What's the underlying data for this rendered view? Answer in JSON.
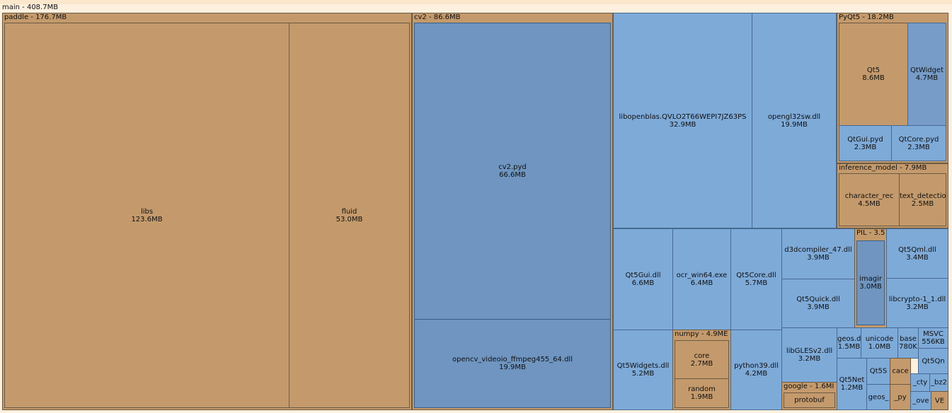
{
  "root": {
    "label": "main - 408.7MB"
  },
  "nodes": {
    "paddle": {
      "header": "paddle - 176.7MB"
    },
    "libs": {
      "name": "libs",
      "size": "123.6MB"
    },
    "fluid": {
      "name": "fluid",
      "size": "53.0MB"
    },
    "cv2": {
      "header": "cv2 - 86.6MB"
    },
    "cv2pyd": {
      "name": "cv2.pyd",
      "size": "66.6MB"
    },
    "opencv": {
      "name": "opencv_videoio_ffmpeg455_64.dll",
      "size": "19.9MB"
    },
    "libopenblas": {
      "name": "libopenblas.QVLO2T66WEPI7JZ63PS",
      "size": "32.9MB"
    },
    "opengl": {
      "name": "opengl32sw.dll",
      "size": "19.9MB"
    },
    "pyqt5": {
      "header": "PyQt5 - 18.2MB"
    },
    "qt5": {
      "name": "Qt5",
      "size": "8.6MB"
    },
    "qtwidgets": {
      "name": "QtWidget",
      "size": "4.7MB"
    },
    "qtgui": {
      "name": "QtGui.pyd",
      "size": "2.3MB"
    },
    "qtcore": {
      "name": "QtCore.pyd",
      "size": "2.3MB"
    },
    "inference": {
      "header": "inference_model - 7.9MB"
    },
    "charrec": {
      "name": "character_rec",
      "size": "4.5MB"
    },
    "textdet": {
      "name": "text_detectio",
      "size": "2.5MB"
    },
    "qt5gui": {
      "name": "Qt5Gui.dll",
      "size": "6.6MB"
    },
    "ocr": {
      "name": "ocr_win64.exe",
      "size": "6.4MB"
    },
    "qt5core": {
      "name": "Qt5Core.dll",
      "size": "5.7MB"
    },
    "d3d": {
      "name": "d3dcompiler_47.dll",
      "size": "3.9MB"
    },
    "qt5quick": {
      "name": "Qt5Quick.dll",
      "size": "3.9MB"
    },
    "pil": {
      "header": "PIL - 3.5"
    },
    "imaging": {
      "name": "imagir",
      "size": "3.0MB"
    },
    "qt5qml": {
      "name": "Qt5Qml.dll",
      "size": "3.4MB"
    },
    "libcrypto": {
      "name": "libcrypto-1_1.dll",
      "size": "3.2MB"
    },
    "qt5widgets": {
      "name": "Qt5Widgets.dll",
      "size": "5.2MB"
    },
    "numpy": {
      "header": "numpy - 4.9ME"
    },
    "core": {
      "name": "core",
      "size": "2.7MB"
    },
    "random": {
      "name": "random",
      "size": "1.9MB"
    },
    "python39": {
      "name": "python39.dll",
      "size": "4.2MB"
    },
    "libgles": {
      "name": "libGLESv2.dll",
      "size": "3.2MB"
    },
    "geos": {
      "name": "geos.dll",
      "size": "1.5MB"
    },
    "unicode": {
      "name": "unicode",
      "size": "1.0MB"
    },
    "base": {
      "name": "base",
      "size": "780K"
    },
    "msvc": {
      "name": "MSVC",
      "size": "556KB"
    },
    "qt5qn": {
      "name": "Qt5Qn"
    },
    "google": {
      "header": "google - 1.6MI"
    },
    "protobuf": {
      "name": "protobuf"
    },
    "qt5net": {
      "name": "Qt5Net",
      "size": "1.2MB"
    },
    "qt5s": {
      "name": "Qt5S"
    },
    "cace": {
      "name": "cace"
    },
    "cty": {
      "name": "_cty"
    },
    "bz2": {
      "name": "_bz2"
    },
    "geos2": {
      "name": "geos_"
    },
    "py": {
      "name": "_py"
    },
    "ove": {
      "name": "_ove"
    },
    "ve": {
      "name": "VE"
    }
  }
}
